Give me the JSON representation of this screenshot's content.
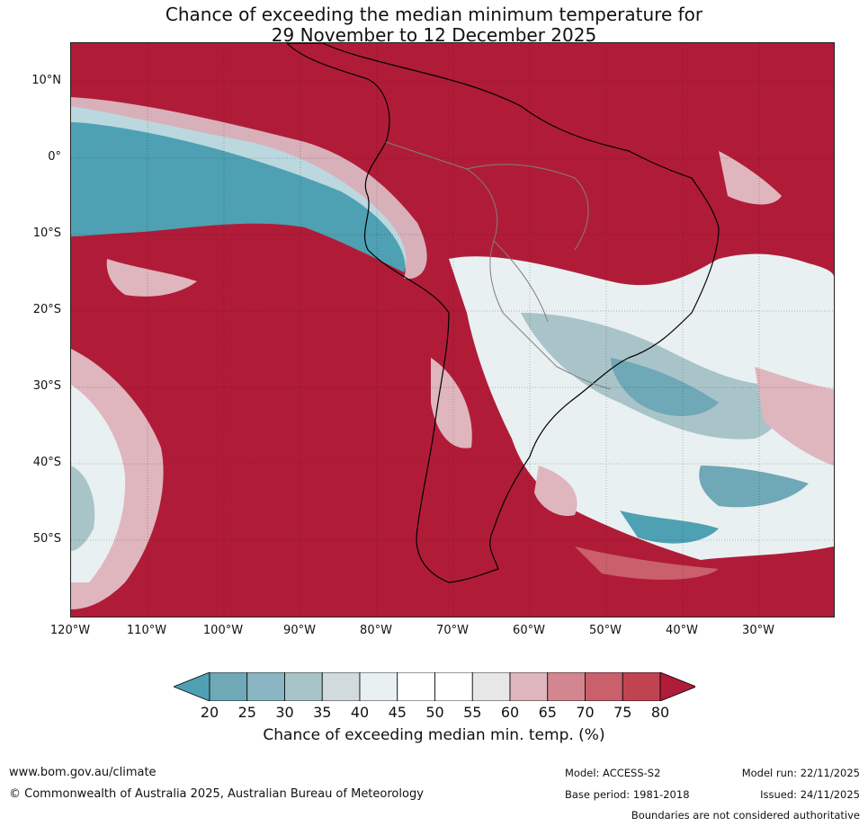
{
  "title": {
    "line1": "Chance of exceeding the median minimum temperature for",
    "line2": "29 November to 12 December 2025"
  },
  "map": {
    "lat_labels": [
      "10°N",
      "0°",
      "10°S",
      "20°S",
      "30°S",
      "40°S",
      "50°S"
    ],
    "lon_labels": [
      "120°W",
      "110°W",
      "100°W",
      "90°W",
      "80°W",
      "70°W",
      "60°W",
      "50°W",
      "40°W",
      "30°W"
    ],
    "colors": {
      "ocean_high": "#b01c38",
      "above_60": "#dfb6bd",
      "above_70": "#c9606c",
      "neutral": "#ffffff",
      "below_35": "#a9c4c9",
      "below_25": "#6fa8b6",
      "below_20": "#4ea1b2",
      "coast": "#000000",
      "border": "#808080"
    }
  },
  "colorbar": {
    "ticks": [
      "20",
      "25",
      "30",
      "35",
      "40",
      "45",
      "50",
      "55",
      "60",
      "65",
      "70",
      "75",
      "80"
    ],
    "colors": [
      "#4ea1b2",
      "#6fa8b6",
      "#8ab6c3",
      "#a9c4c9",
      "#d1dadc",
      "#e9f0f2",
      "#ffffff",
      "#ffffff",
      "#e7e7e7",
      "#dfb6bd",
      "#d3868f",
      "#c9606c",
      "#bf4351",
      "#b01c38"
    ],
    "label": "Chance of exceeding median min. temp. (%)"
  },
  "footer": {
    "website": "www.bom.gov.au/climate",
    "copyright": "© Commonwealth of Australia 2025, Australian Bureau of Meteorology",
    "model": "Model: ACCESS-S2",
    "base_period": "Base period: 1981-2018",
    "model_run": "Model run: 22/11/2025",
    "issued": "Issued: 24/11/2025",
    "disclaimer": "Boundaries are not considered authoritative"
  }
}
